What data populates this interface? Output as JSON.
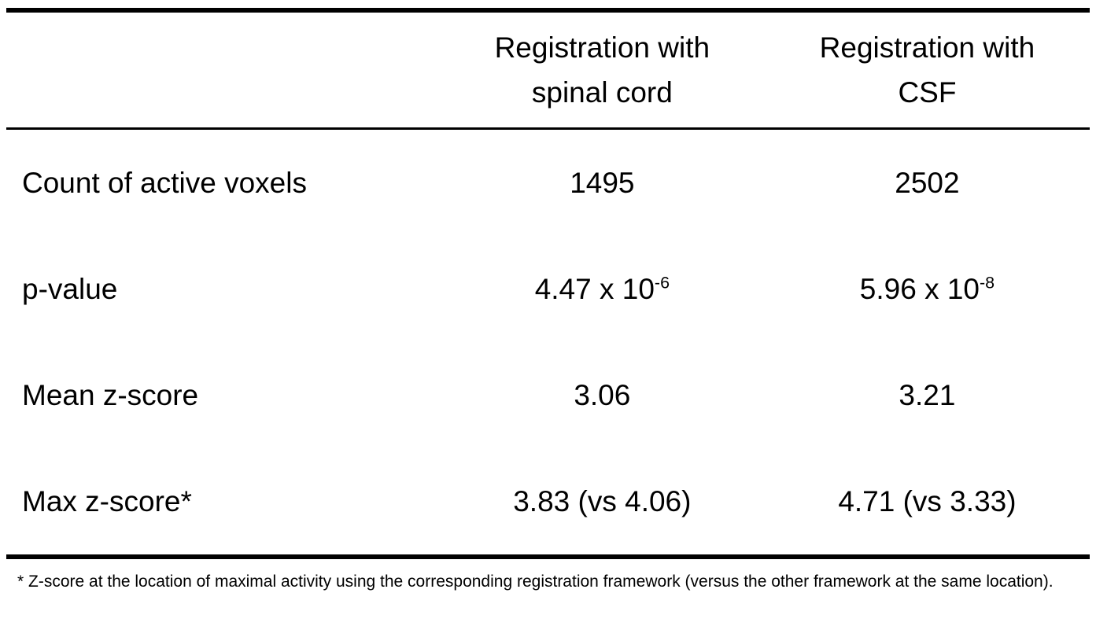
{
  "table": {
    "header": {
      "col1": {
        "line1": "Registration with",
        "line2": "spinal cord"
      },
      "col2": {
        "line1": "Registration with",
        "line2": "CSF"
      }
    },
    "rows": [
      {
        "label": "Count of active voxels",
        "cols": [
          {
            "text": "1495",
            "sup": ""
          },
          {
            "text": "2502",
            "sup": ""
          }
        ]
      },
      {
        "label": "p-value",
        "cols": [
          {
            "text": "4.47 x 10",
            "sup": "-6"
          },
          {
            "text": "5.96 x 10",
            "sup": "-8"
          }
        ]
      },
      {
        "label": "Mean z-score",
        "cols": [
          {
            "text": "3.06",
            "sup": ""
          },
          {
            "text": "3.21",
            "sup": ""
          }
        ]
      },
      {
        "label": "Max z-score*",
        "cols": [
          {
            "text": "3.83 (vs 4.06)",
            "sup": ""
          },
          {
            "text": "4.71 (vs 3.33)",
            "sup": ""
          }
        ]
      }
    ],
    "footnote": "* Z-score at the location of maximal activity using the corresponding registration framework (versus the other framework at the same location)."
  },
  "colors": {
    "background": "#ffffff",
    "text": "#000000",
    "rule": "#000000"
  }
}
